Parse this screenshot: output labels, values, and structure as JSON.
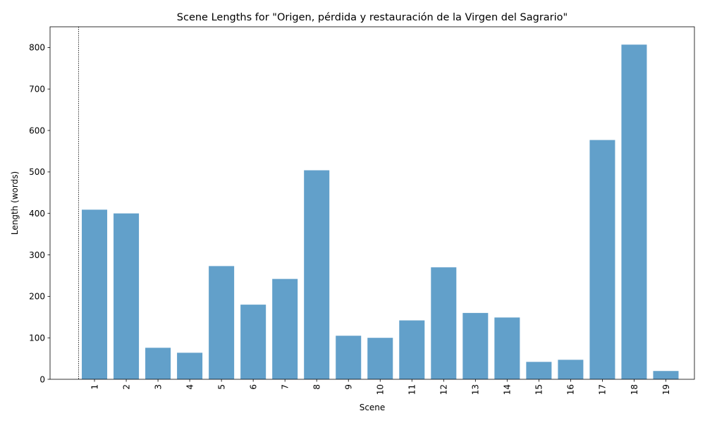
{
  "chart_data": {
    "type": "bar",
    "title": "Scene Lengths for \"Origen, pérdida y restauración de la Virgen del Sagrario\"",
    "xlabel": "Scene",
    "ylabel": "Length (words)",
    "categories": [
      "1",
      "2",
      "3",
      "4",
      "5",
      "6",
      "7",
      "8",
      "9",
      "10",
      "11",
      "12",
      "13",
      "14",
      "15",
      "16",
      "17",
      "18",
      "19"
    ],
    "values": [
      409,
      400,
      76,
      64,
      273,
      180,
      242,
      504,
      105,
      100,
      142,
      270,
      160,
      149,
      42,
      47,
      577,
      807,
      20
    ],
    "ylim": [
      0,
      850
    ],
    "yticks": [
      0,
      100,
      200,
      300,
      400,
      500,
      600,
      700,
      800
    ],
    "xtick_rotation": 90,
    "grid": false,
    "legend": "none",
    "bar_color": "#1f77b4",
    "bar_opacity": 0.7,
    "reference_line": {
      "style": "dotted",
      "color": "#000000"
    }
  }
}
